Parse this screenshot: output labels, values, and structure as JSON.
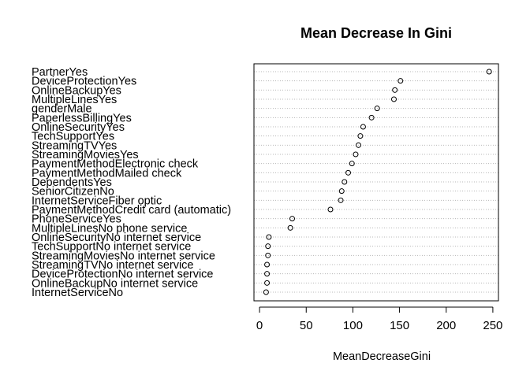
{
  "chart_data": {
    "type": "scatter",
    "title": "Mean Decrease In Gini",
    "xlabel": "MeanDecreaseGini",
    "ylabel": "",
    "xlim": [
      -6,
      256
    ],
    "xticks": [
      "0",
      "50",
      "100",
      "150",
      "200",
      "250"
    ],
    "grid": "dotted horizontal lines",
    "points": [
      {
        "label": "PartnerYes",
        "value": 246
      },
      {
        "label": "DeviceProtectionYes",
        "value": 151
      },
      {
        "label": "OnlineBackupYes",
        "value": 145
      },
      {
        "label": "MultipleLinesYes",
        "value": 144
      },
      {
        "label": "genderMale",
        "value": 126
      },
      {
        "label": "PaperlessBillingYes",
        "value": 120
      },
      {
        "label": "OnlineSecurityYes",
        "value": 111
      },
      {
        "label": "TechSupportYes",
        "value": 108
      },
      {
        "label": "StreamingTVYes",
        "value": 106
      },
      {
        "label": "StreamingMoviesYes",
        "value": 103
      },
      {
        "label": "PaymentMethodElectronic check",
        "value": 99
      },
      {
        "label": "PaymentMethodMailed check",
        "value": 95
      },
      {
        "label": "DependentsYes",
        "value": 91
      },
      {
        "label": "SeniorCitizenNo",
        "value": 88
      },
      {
        "label": "InternetServiceFiber optic",
        "value": 87
      },
      {
        "label": "PaymentMethodCredit card (automatic)",
        "value": 76
      },
      {
        "label": "PhoneServiceYes",
        "value": 35
      },
      {
        "label": "MultipleLinesNo phone service",
        "value": 33
      },
      {
        "label": "OnlineSecurityNo internet service",
        "value": 10
      },
      {
        "label": "TechSupportNo internet service",
        "value": 9
      },
      {
        "label": "StreamingMoviesNo internet service",
        "value": 9
      },
      {
        "label": "StreamingTVNo internet service",
        "value": 8
      },
      {
        "label": "DeviceProtectionNo internet service",
        "value": 8
      },
      {
        "label": "OnlineBackupNo internet service",
        "value": 8
      },
      {
        "label": "InternetServiceNo",
        "value": 7
      }
    ]
  }
}
